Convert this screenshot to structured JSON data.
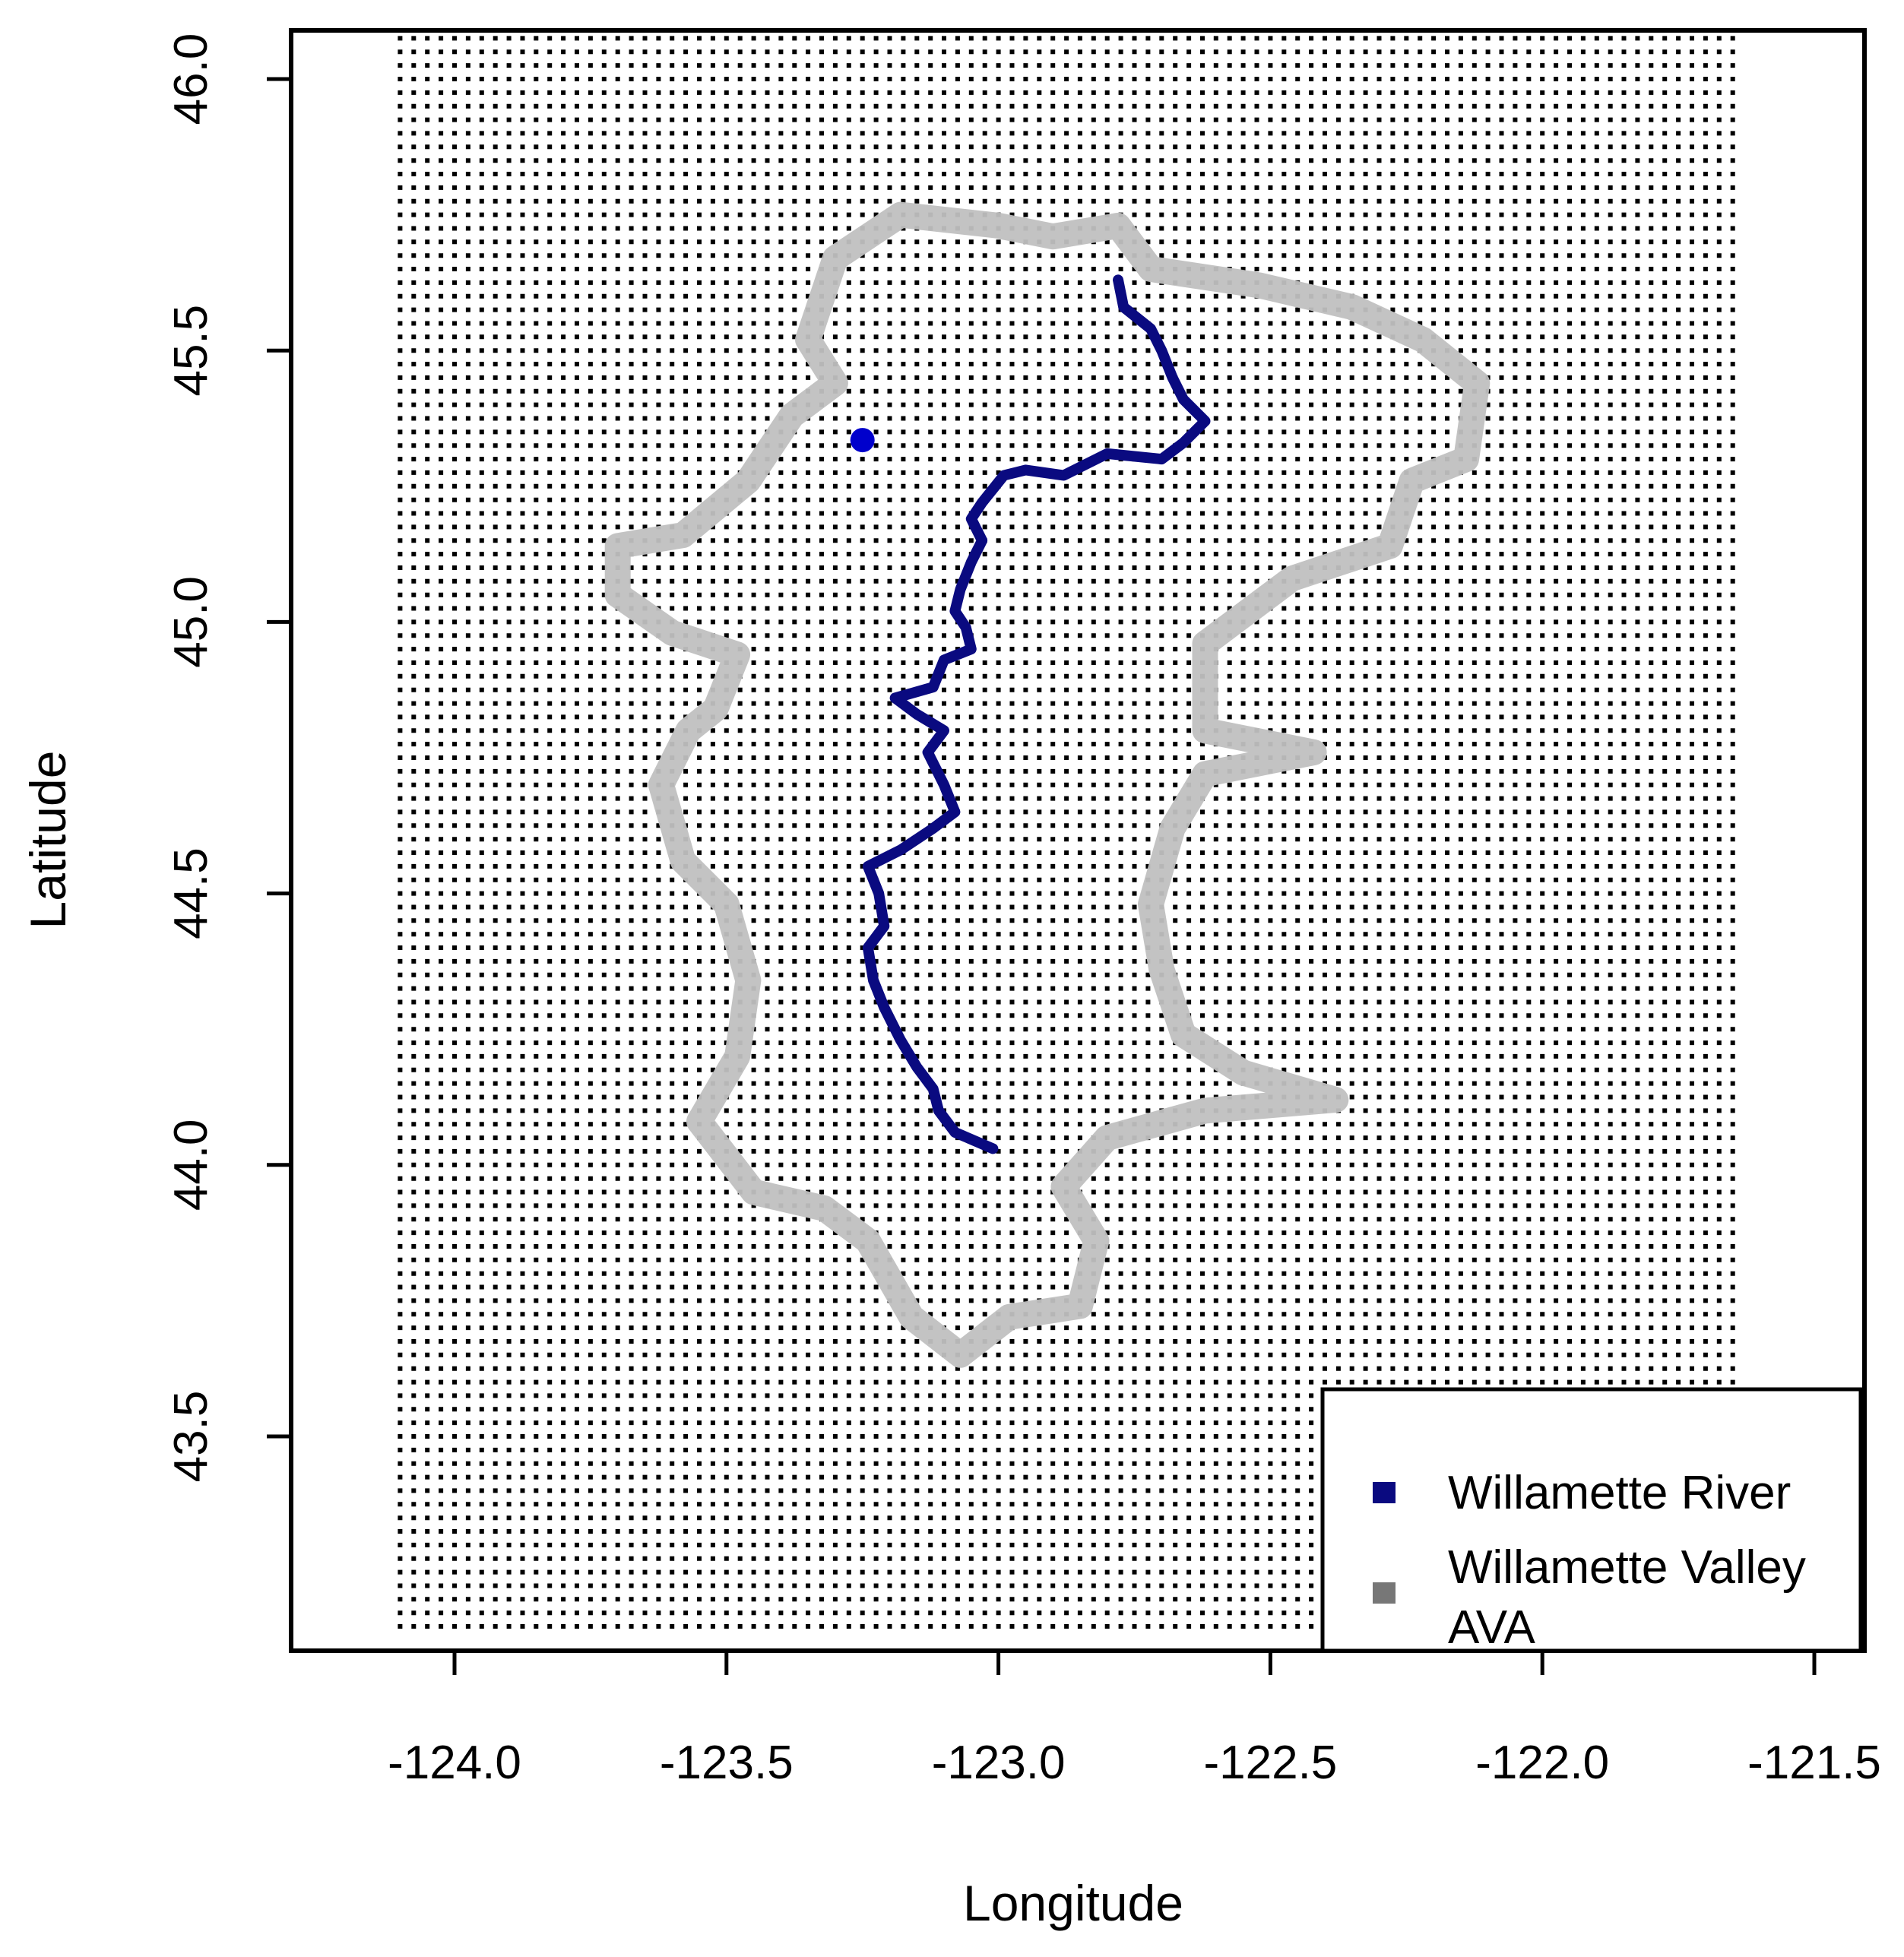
{
  "chart_data": {
    "type": "scatter",
    "title": "",
    "xlabel": "Longitude",
    "ylabel": "Latitude",
    "xlim": [
      -124.3,
      -121.4
    ],
    "ylim": [
      43.1,
      46.1
    ],
    "x_ticks": [
      -124.0,
      -123.5,
      -123.0,
      -122.5,
      -122.0,
      -121.5
    ],
    "x_tick_labels": [
      "-124.0",
      "-123.5",
      "-123.0",
      "-122.5",
      "-122.0",
      "-121.5"
    ],
    "y_ticks": [
      43.5,
      44.0,
      44.5,
      45.0,
      45.5,
      46.0
    ],
    "y_tick_labels": [
      "43.5",
      "44.0",
      "44.5",
      "45.0",
      "45.5",
      "46.0"
    ],
    "grid_points": {
      "description_of_extent": "regular grid of black points",
      "lon_range": [
        -124.1,
        -121.65
      ],
      "lat_range": [
        43.15,
        46.08
      ],
      "spacing": 0.025,
      "color": "#000000"
    },
    "series": [
      {
        "name": "Willamette River",
        "color": "#0a0a80",
        "type": "line",
        "points": [
          [
            -122.78,
            45.63
          ],
          [
            -122.77,
            45.58
          ],
          [
            -122.72,
            45.54
          ],
          [
            -122.7,
            45.5
          ],
          [
            -122.68,
            45.45
          ],
          [
            -122.66,
            45.41
          ],
          [
            -122.62,
            45.37
          ],
          [
            -122.66,
            45.33
          ],
          [
            -122.7,
            45.3
          ],
          [
            -122.8,
            45.31
          ],
          [
            -122.88,
            45.27
          ],
          [
            -122.95,
            45.28
          ],
          [
            -122.99,
            45.27
          ],
          [
            -123.03,
            45.22
          ],
          [
            -123.05,
            45.19
          ],
          [
            -123.03,
            45.15
          ],
          [
            -123.05,
            45.11
          ],
          [
            -123.07,
            45.06
          ],
          [
            -123.08,
            45.02
          ],
          [
            -123.06,
            44.99
          ],
          [
            -123.05,
            44.95
          ],
          [
            -123.1,
            44.93
          ],
          [
            -123.12,
            44.88
          ],
          [
            -123.19,
            44.86
          ],
          [
            -123.15,
            44.83
          ],
          [
            -123.1,
            44.8
          ],
          [
            -123.13,
            44.76
          ],
          [
            -123.1,
            44.7
          ],
          [
            -123.08,
            44.65
          ],
          [
            -123.12,
            44.62
          ],
          [
            -123.18,
            44.58
          ],
          [
            -123.24,
            44.55
          ],
          [
            -123.22,
            44.5
          ],
          [
            -123.21,
            44.44
          ],
          [
            -123.24,
            44.4
          ],
          [
            -123.23,
            44.34
          ],
          [
            -123.21,
            44.29
          ],
          [
            -123.18,
            44.23
          ],
          [
            -123.15,
            44.18
          ],
          [
            -123.12,
            44.14
          ],
          [
            -123.11,
            44.1
          ],
          [
            -123.08,
            44.06
          ],
          [
            -123.01,
            44.03
          ]
        ]
      },
      {
        "name": "Willamette Valley AVA",
        "color": "#c0c0c0",
        "type": "area",
        "points": [
          [
            -123.3,
            45.67
          ],
          [
            -123.18,
            45.75
          ],
          [
            -123.0,
            45.73
          ],
          [
            -122.9,
            45.71
          ],
          [
            -122.78,
            45.73
          ],
          [
            -122.72,
            45.65
          ],
          [
            -122.52,
            45.62
          ],
          [
            -122.35,
            45.58
          ],
          [
            -122.22,
            45.52
          ],
          [
            -122.12,
            45.44
          ],
          [
            -122.14,
            45.3
          ],
          [
            -122.24,
            45.26
          ],
          [
            -122.28,
            45.14
          ],
          [
            -122.46,
            45.08
          ],
          [
            -122.62,
            44.96
          ],
          [
            -122.62,
            44.8
          ],
          [
            -122.42,
            44.76
          ],
          [
            -122.62,
            44.72
          ],
          [
            -122.68,
            44.62
          ],
          [
            -122.72,
            44.48
          ],
          [
            -122.7,
            44.36
          ],
          [
            -122.66,
            44.24
          ],
          [
            -122.55,
            44.17
          ],
          [
            -122.38,
            44.12
          ],
          [
            -122.62,
            44.1
          ],
          [
            -122.8,
            44.05
          ],
          [
            -122.88,
            43.96
          ],
          [
            -122.82,
            43.86
          ],
          [
            -122.85,
            43.74
          ],
          [
            -122.98,
            43.72
          ],
          [
            -123.07,
            43.65
          ],
          [
            -123.16,
            43.72
          ],
          [
            -123.24,
            43.86
          ],
          [
            -123.32,
            43.92
          ],
          [
            -123.45,
            43.95
          ],
          [
            -123.55,
            44.08
          ],
          [
            -123.48,
            44.2
          ],
          [
            -123.46,
            44.34
          ],
          [
            -123.5,
            44.48
          ],
          [
            -123.58,
            44.56
          ],
          [
            -123.62,
            44.7
          ],
          [
            -123.57,
            44.8
          ],
          [
            -123.52,
            44.84
          ],
          [
            -123.48,
            44.94
          ],
          [
            -123.6,
            44.98
          ],
          [
            -123.7,
            45.05
          ],
          [
            -123.7,
            45.14
          ],
          [
            -123.58,
            45.16
          ],
          [
            -123.46,
            45.26
          ],
          [
            -123.38,
            45.38
          ],
          [
            -123.3,
            45.44
          ],
          [
            -123.35,
            45.52
          ],
          [
            -123.3,
            45.67
          ]
        ]
      }
    ],
    "highlight_point": {
      "lon": -123.25,
      "lat": 45.335,
      "color": "#0000cc"
    },
    "legend": {
      "placement": "bottom-right",
      "entries": [
        {
          "label_lines": [
            "Willamette River"
          ],
          "color": "#0a0a80"
        },
        {
          "label_lines": [
            "Willamette Valley",
            "AVA"
          ],
          "color": "#777777"
        }
      ]
    }
  }
}
